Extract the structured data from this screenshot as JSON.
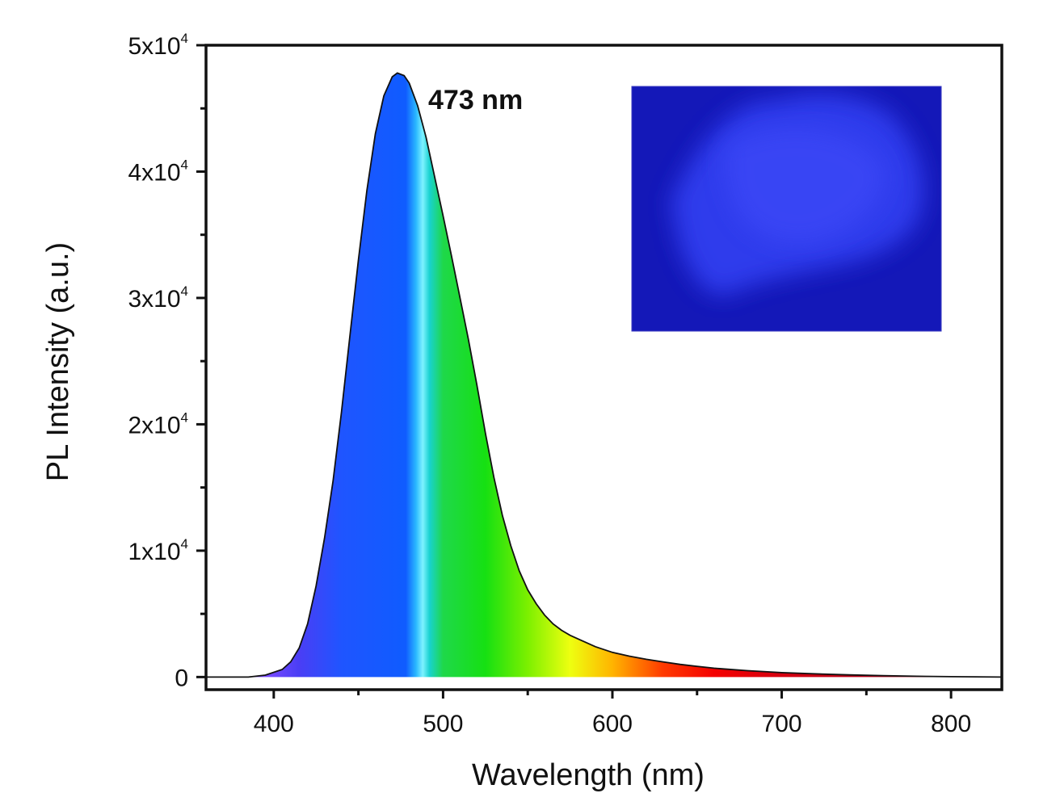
{
  "chart_data": {
    "type": "area",
    "title": "",
    "xlabel": "Wavelength (nm)",
    "ylabel": "PL Intensity (a.u.)",
    "xlim": [
      360,
      830
    ],
    "ylim": [
      -1000,
      50000
    ],
    "x_ticks": [
      400,
      500,
      600,
      700,
      800
    ],
    "y_ticks": [
      {
        "value": 0,
        "base": "0",
        "exp": ""
      },
      {
        "value": 10000,
        "base": "1x10",
        "exp": "4"
      },
      {
        "value": 20000,
        "base": "2x10",
        "exp": "4"
      },
      {
        "value": 30000,
        "base": "3x10",
        "exp": "4"
      },
      {
        "value": 40000,
        "base": "4x10",
        "exp": "4"
      },
      {
        "value": 50000,
        "base": "5x10",
        "exp": "4"
      }
    ],
    "annotation": {
      "text": "473 nm",
      "x": 473
    },
    "series": [
      {
        "x": [
          360,
          385,
          395,
          405,
          410,
          415,
          420,
          425,
          430,
          435,
          440,
          445,
          450,
          455,
          460,
          465,
          470,
          473,
          477,
          480,
          485,
          490,
          495,
          500,
          505,
          510,
          515,
          520,
          525,
          530,
          535,
          540,
          545,
          550,
          555,
          560,
          565,
          570,
          575,
          580,
          590,
          600,
          610,
          620,
          630,
          640,
          650,
          660,
          680,
          700,
          720,
          740,
          760,
          780,
          800,
          830
        ],
        "y": [
          0,
          0,
          150,
          600,
          1200,
          2300,
          4200,
          7200,
          11000,
          15500,
          21000,
          27000,
          33000,
          38500,
          43000,
          46000,
          47500,
          47800,
          47600,
          47000,
          45200,
          42700,
          39600,
          36500,
          33300,
          30000,
          26700,
          23100,
          19300,
          15800,
          12800,
          10400,
          8400,
          6900,
          5800,
          4900,
          4200,
          3700,
          3300,
          3000,
          2400,
          1950,
          1650,
          1400,
          1200,
          1000,
          850,
          700,
          500,
          350,
          250,
          170,
          110,
          60,
          30,
          0
        ]
      }
    ],
    "grid": false,
    "legend": "none"
  },
  "colors": {
    "spectrum_stops": [
      {
        "nm": 395,
        "color": "#7b4bff"
      },
      {
        "nm": 415,
        "color": "#4a3ef5"
      },
      {
        "nm": 440,
        "color": "#1f55ff"
      },
      {
        "nm": 478,
        "color": "#0f5cff"
      },
      {
        "nm": 484,
        "color": "#2ab8ff"
      },
      {
        "nm": 488,
        "color": "#7ef2ff"
      },
      {
        "nm": 492,
        "color": "#19d2d0"
      },
      {
        "nm": 500,
        "color": "#1fd84a"
      },
      {
        "nm": 525,
        "color": "#16e012"
      },
      {
        "nm": 550,
        "color": "#7cf000"
      },
      {
        "nm": 575,
        "color": "#eeff10"
      },
      {
        "nm": 600,
        "color": "#ffb400"
      },
      {
        "nm": 630,
        "color": "#ff3a00"
      },
      {
        "nm": 660,
        "color": "#f40000"
      },
      {
        "nm": 700,
        "color": "#d60010"
      },
      {
        "nm": 760,
        "color": "#b0001a"
      }
    ],
    "inset_background": "#1818c8"
  },
  "inset": {
    "label": "fluorescence-photo"
  }
}
